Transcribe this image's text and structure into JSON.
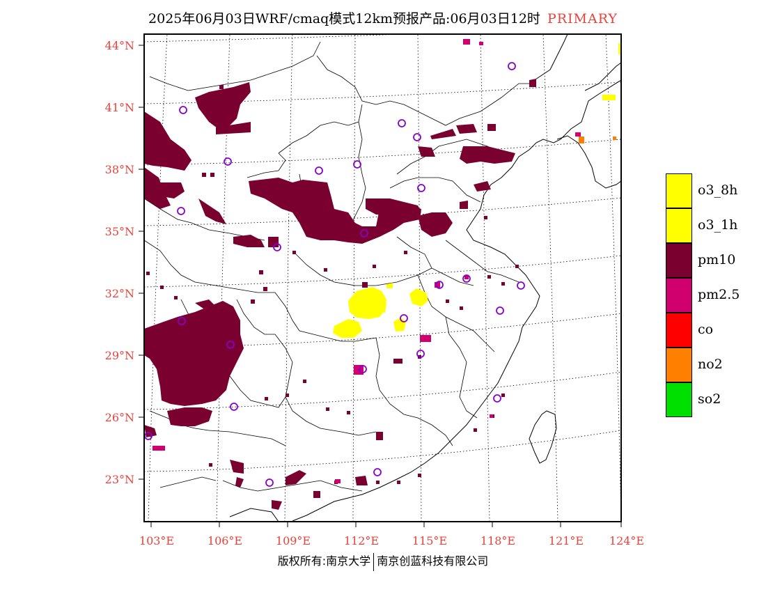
{
  "title": {
    "main": "2025年06月03日WRF/cmaq模式12km预报产品:06月03日12时",
    "mode": "PRIMARY"
  },
  "axes": {
    "lat_ticks": [
      "44°N",
      "41°N",
      "38°N",
      "35°N",
      "32°N",
      "29°N",
      "26°N",
      "23°N"
    ],
    "lon_ticks": [
      "103°E",
      "106°E",
      "109°E",
      "112°E",
      "115°E",
      "118°E",
      "121°E",
      "124°E"
    ],
    "label_color": "#e8423a"
  },
  "legend": [
    {
      "label": "o3_8h",
      "color": "#ffff00"
    },
    {
      "label": "o3_1h",
      "color": "#ffff00"
    },
    {
      "label": "pm10",
      "color": "#7a0030"
    },
    {
      "label": "pm2.5",
      "color": "#d0006f"
    },
    {
      "label": "co",
      "color": "#ff0000"
    },
    {
      "label": "no2",
      "color": "#ff7f00"
    },
    {
      "label": "so2",
      "color": "#00e000"
    }
  ],
  "footer": {
    "left": "版权所有:南京大学",
    "right": "南京创蓝科技有限公司"
  }
}
